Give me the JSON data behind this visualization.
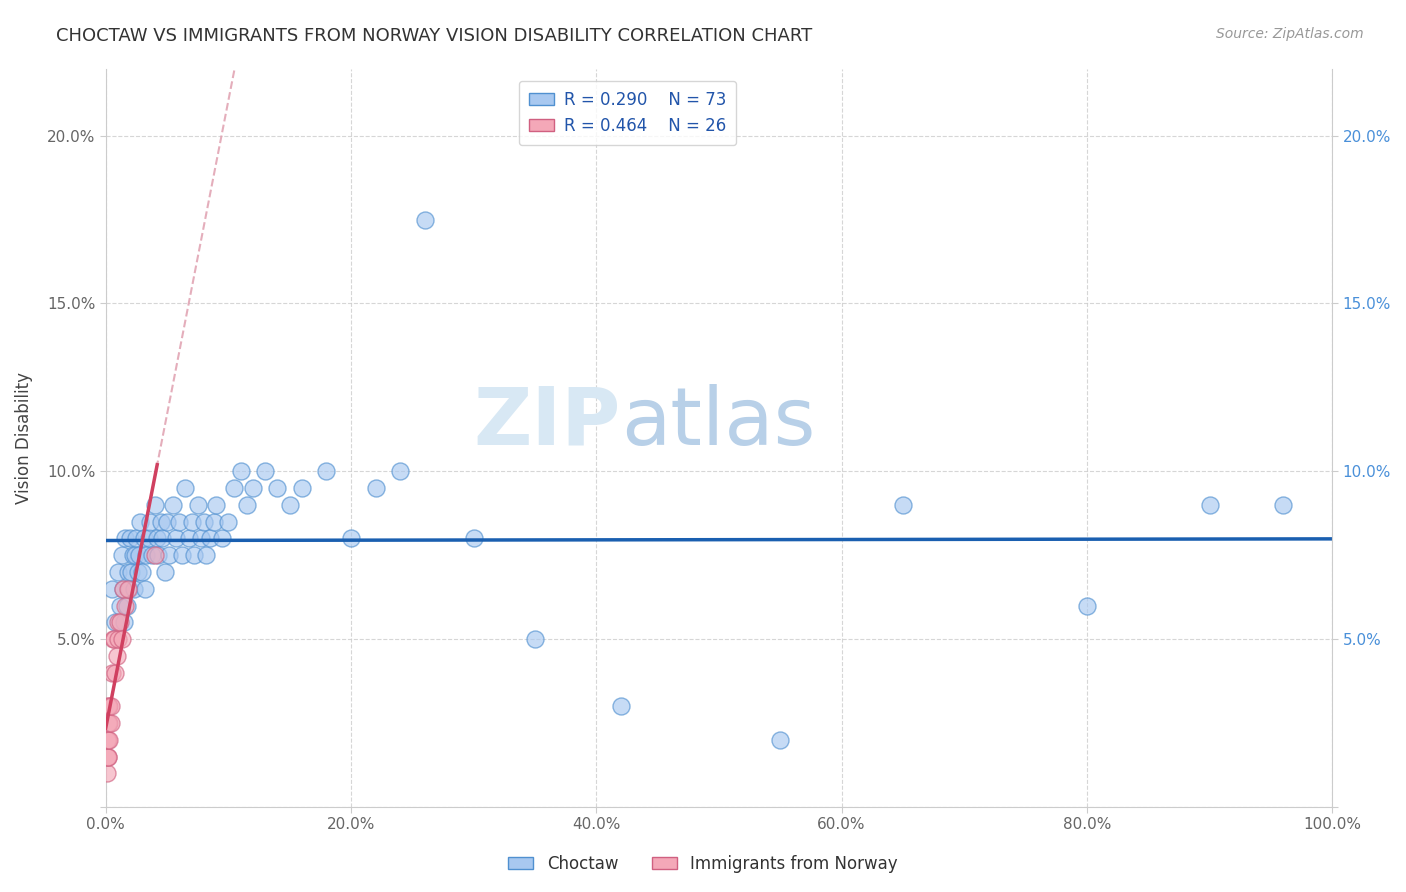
{
  "title": "CHOCTAW VS IMMIGRANTS FROM NORWAY VISION DISABILITY CORRELATION CHART",
  "source": "Source: ZipAtlas.com",
  "ylabel": "Vision Disability",
  "xlim": [
    0,
    1.0
  ],
  "ylim": [
    0,
    0.22
  ],
  "xticks": [
    0.0,
    0.2,
    0.4,
    0.6,
    0.8,
    1.0
  ],
  "xticklabels": [
    "0.0%",
    "20.0%",
    "40.0%",
    "60.0%",
    "80.0%",
    "100.0%"
  ],
  "yticks": [
    0.0,
    0.05,
    0.1,
    0.15,
    0.2
  ],
  "yticklabels_left": [
    "",
    "5.0%",
    "10.0%",
    "15.0%",
    "20.0%"
  ],
  "yticklabels_right": [
    "",
    "5.0%",
    "10.0%",
    "15.0%",
    "20.0%"
  ],
  "legend_label1": "Choctaw",
  "legend_label2": "Immigrants from Norway",
  "R1": "0.290",
  "N1": "73",
  "R2": "0.464",
  "N2": "26",
  "color_blue": "#A8C8F0",
  "color_pink": "#F4A8B8",
  "edge_blue": "#5090D0",
  "edge_pink": "#D06080",
  "trendline_blue": "#1A5FB0",
  "trendline_pink": "#D04060",
  "trendline_dashed_color": "#E0A0B0",
  "watermark_zip": "ZIP",
  "watermark_atlas": "atlas",
  "bg_color": "#FFFFFF",
  "blue_x": [
    0.005,
    0.008,
    0.01,
    0.012,
    0.013,
    0.014,
    0.015,
    0.016,
    0.017,
    0.018,
    0.019,
    0.02,
    0.021,
    0.022,
    0.023,
    0.024,
    0.025,
    0.026,
    0.027,
    0.028,
    0.03,
    0.031,
    0.032,
    0.033,
    0.035,
    0.036,
    0.038,
    0.04,
    0.042,
    0.043,
    0.045,
    0.046,
    0.048,
    0.05,
    0.052,
    0.055,
    0.057,
    0.06,
    0.062,
    0.065,
    0.068,
    0.07,
    0.072,
    0.075,
    0.078,
    0.08,
    0.082,
    0.085,
    0.088,
    0.09,
    0.095,
    0.1,
    0.105,
    0.11,
    0.115,
    0.12,
    0.13,
    0.14,
    0.15,
    0.16,
    0.18,
    0.2,
    0.22,
    0.24,
    0.26,
    0.3,
    0.35,
    0.42,
    0.55,
    0.65,
    0.8,
    0.9,
    0.96
  ],
  "blue_y": [
    0.065,
    0.055,
    0.07,
    0.06,
    0.075,
    0.065,
    0.055,
    0.08,
    0.06,
    0.07,
    0.065,
    0.08,
    0.07,
    0.075,
    0.065,
    0.075,
    0.08,
    0.07,
    0.075,
    0.085,
    0.07,
    0.08,
    0.065,
    0.075,
    0.08,
    0.085,
    0.075,
    0.09,
    0.08,
    0.075,
    0.085,
    0.08,
    0.07,
    0.085,
    0.075,
    0.09,
    0.08,
    0.085,
    0.075,
    0.095,
    0.08,
    0.085,
    0.075,
    0.09,
    0.08,
    0.085,
    0.075,
    0.08,
    0.085,
    0.09,
    0.08,
    0.085,
    0.095,
    0.1,
    0.09,
    0.095,
    0.1,
    0.095,
    0.09,
    0.095,
    0.1,
    0.08,
    0.095,
    0.1,
    0.175,
    0.08,
    0.05,
    0.03,
    0.02,
    0.09,
    0.06,
    0.09,
    0.09
  ],
  "pink_x": [
    0.001,
    0.001,
    0.001,
    0.002,
    0.002,
    0.002,
    0.002,
    0.002,
    0.003,
    0.003,
    0.003,
    0.004,
    0.004,
    0.005,
    0.006,
    0.007,
    0.008,
    0.009,
    0.01,
    0.01,
    0.012,
    0.013,
    0.014,
    0.016,
    0.018,
    0.04
  ],
  "pink_y": [
    0.01,
    0.015,
    0.02,
    0.015,
    0.015,
    0.02,
    0.025,
    0.03,
    0.02,
    0.025,
    0.03,
    0.025,
    0.03,
    0.04,
    0.05,
    0.05,
    0.04,
    0.045,
    0.05,
    0.055,
    0.055,
    0.05,
    0.065,
    0.06,
    0.065,
    0.075
  ]
}
